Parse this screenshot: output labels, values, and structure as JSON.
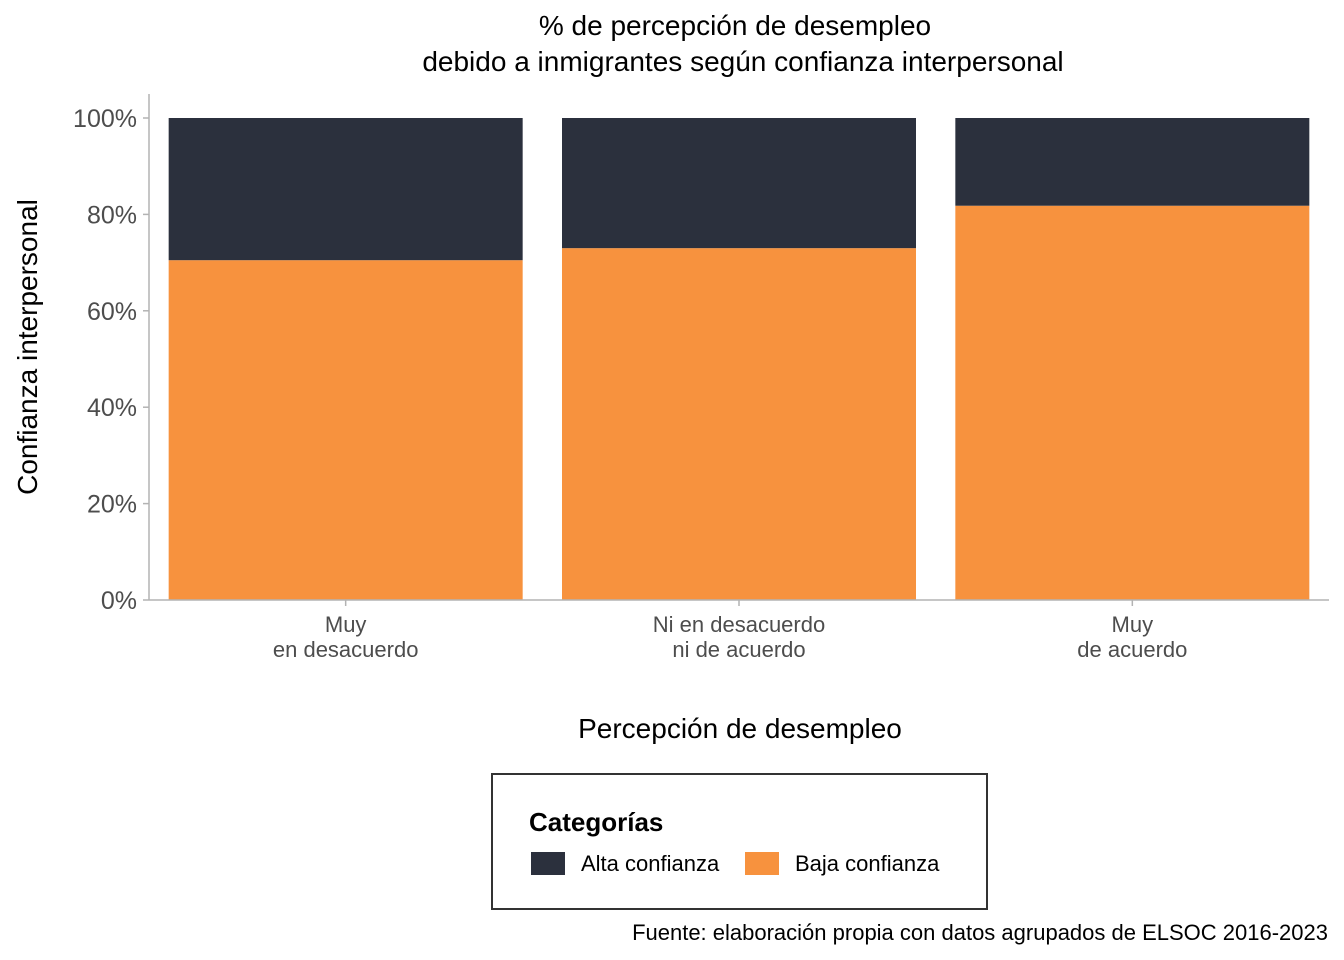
{
  "chart_data": {
    "type": "bar",
    "stacked": true,
    "title_lines": [
      "% de percepción de desempleo",
      "debido a inmigrantes según confianza interpersonal"
    ],
    "xlabel": "Percepción de desempleo",
    "ylabel": "Confianza interpersonal",
    "categories": [
      [
        "Muy",
        "en desacuerdo"
      ],
      [
        "Ni en desacuerdo",
        "ni de acuerdo"
      ],
      [
        "Muy",
        "de acuerdo"
      ]
    ],
    "series": [
      {
        "name": "Baja confianza",
        "color": "#F7923E",
        "values": [
          0.705,
          0.73,
          0.818
        ]
      },
      {
        "name": "Alta confianza",
        "color": "#2B303D",
        "values": [
          0.295,
          0.27,
          0.182
        ]
      }
    ],
    "ylim": [
      0,
      1
    ],
    "yticks": [
      "0%",
      "20%",
      "40%",
      "60%",
      "80%",
      "100%"
    ],
    "grid": false,
    "legend": {
      "title": "Categorías",
      "placement": "bottom",
      "items": [
        {
          "label": "Alta confianza",
          "color": "#2B303D"
        },
        {
          "label": "Baja confianza",
          "color": "#F7923E"
        }
      ]
    },
    "caption": "Fuente: elaboración propia con datos agrupados de ELSOC 2016-2023"
  }
}
